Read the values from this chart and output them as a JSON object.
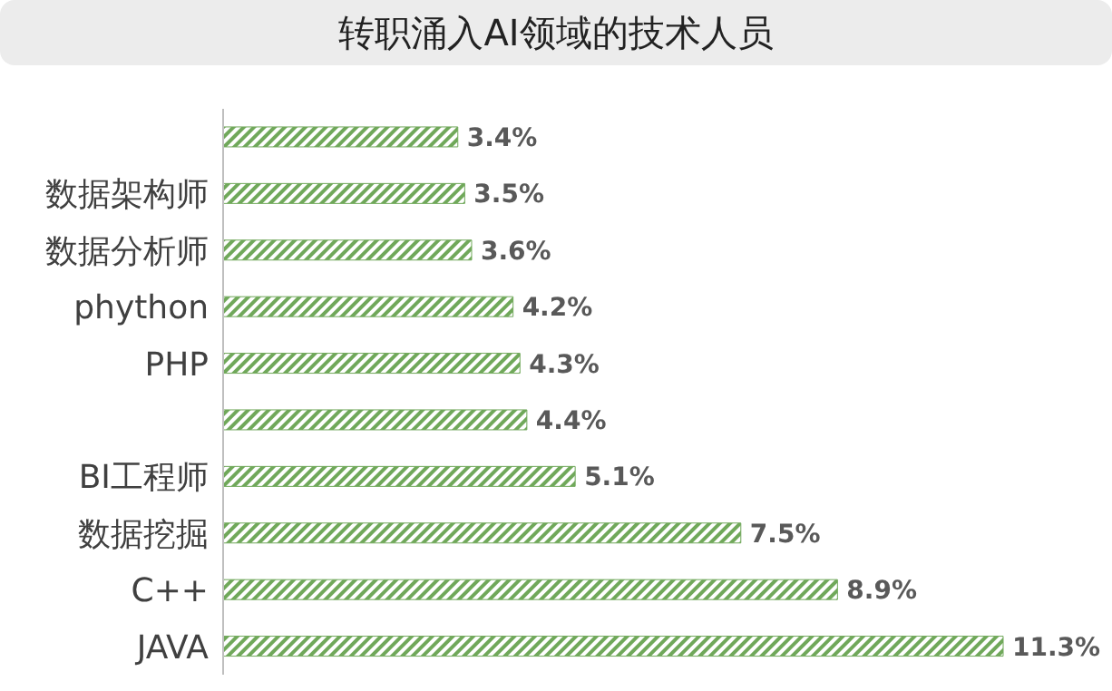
{
  "chart_data": {
    "type": "bar",
    "orientation": "horizontal",
    "title": "转职涌入AI领域的技术人员",
    "categories": [
      null,
      "数据架构师",
      "数据分析师",
      "phython",
      "PHP",
      null,
      "BI工程师",
      "数据挖掘",
      "C++",
      "JAVA"
    ],
    "values": [
      3.4,
      3.5,
      3.6,
      4.2,
      4.3,
      4.4,
      5.1,
      7.5,
      8.9,
      11.3
    ],
    "value_labels": [
      "3.4%",
      "3.5%",
      "3.6%",
      "4.2%",
      "4.3%",
      "4.4%",
      "5.1%",
      "7.5%",
      "8.9%",
      "11.3%"
    ],
    "color": "#70a85a",
    "grid": false,
    "legend": false
  }
}
